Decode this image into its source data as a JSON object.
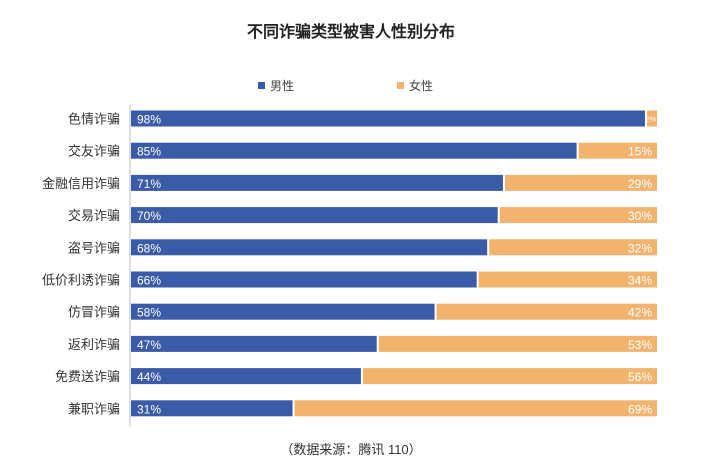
{
  "chart_data": {
    "type": "bar",
    "orientation": "horizontal",
    "stacked": true,
    "percent": true,
    "title": "不同诈骗类型被害人性别分布",
    "source": "（数据来源：腾讯 110）",
    "categories": [
      "色情诈骗",
      "交友诈骗",
      "金融信用诈骗",
      "交易诈骗",
      "盗号诈骗",
      "低价利诱诈骗",
      "仿冒诈骗",
      "返利诈骗",
      "免费送诈骗",
      "兼职诈骗"
    ],
    "series": [
      {
        "name": "男性",
        "color": "#3a5ba8",
        "values": [
          98,
          85,
          71,
          70,
          68,
          66,
          58,
          47,
          44,
          31
        ]
      },
      {
        "name": "女性",
        "color": "#f2b46d",
        "values": [
          2,
          15,
          29,
          30,
          32,
          34,
          42,
          53,
          56,
          69
        ]
      }
    ],
    "xlim": [
      0,
      100
    ],
    "legend": "top-center"
  }
}
